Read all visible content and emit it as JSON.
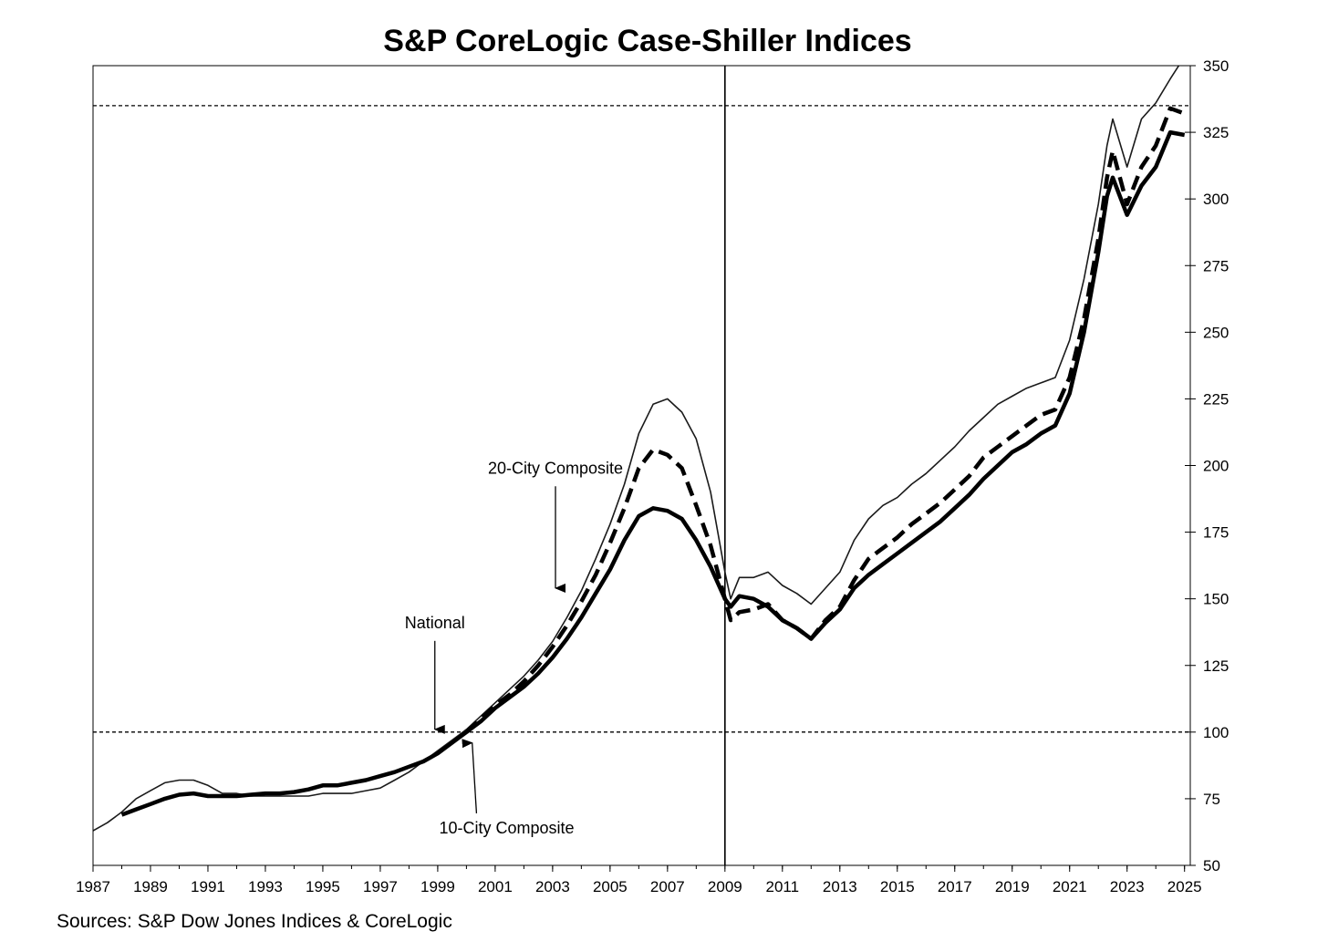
{
  "chart_data": {
    "type": "line",
    "title": "S&P CoreLogic Case-Shiller Indices",
    "source": "Sources:  S&P Dow Jones Indices & CoreLogic",
    "xlim": [
      1987,
      2025.2
    ],
    "ylim": [
      50,
      350
    ],
    "x_ticks": [
      "1987",
      "1989",
      "1991",
      "1993",
      "1995",
      "1997",
      "1999",
      "2001",
      "2003",
      "2005",
      "2007",
      "2009",
      "2011",
      "2013",
      "2015",
      "2017",
      "2019",
      "2021",
      "2023",
      "2025"
    ],
    "y_ticks": [
      "50",
      "75",
      "100",
      "125",
      "150",
      "175",
      "200",
      "225",
      "250",
      "275",
      "300",
      "325",
      "350"
    ],
    "y_axis_side": "right",
    "grid": false,
    "reference_lines": [
      {
        "axis": "y",
        "value": 100,
        "style": "dashed"
      },
      {
        "axis": "y",
        "value": 335,
        "style": "dashed"
      },
      {
        "axis": "x",
        "value": 2009,
        "style": "solid"
      }
    ],
    "annotations": [
      {
        "text": "20-City Composite",
        "label_x": 2003.1,
        "label_y": 197,
        "arrow_to_x": 2003.1,
        "arrow_to_y": 154
      },
      {
        "text": "National",
        "label_x": 1998.9,
        "label_y": 139,
        "arrow_to_x": 1998.9,
        "arrow_to_y": 101
      },
      {
        "text": "10-City Composite",
        "label_x": 2001.4,
        "label_y": 62,
        "arrow_to_x": 2000.2,
        "arrow_to_y": 96
      }
    ],
    "series": [
      {
        "id": "national",
        "style": "thin",
        "points": [
          [
            1987,
            63
          ],
          [
            1987.5,
            66
          ],
          [
            1988,
            70
          ],
          [
            1988.5,
            75
          ],
          [
            1989,
            78
          ],
          [
            1989.5,
            81
          ],
          [
            1990,
            82
          ],
          [
            1990.5,
            82
          ],
          [
            1991,
            80
          ],
          [
            1991.5,
            77
          ],
          [
            1992,
            77
          ],
          [
            1992.5,
            76
          ],
          [
            1993,
            76
          ],
          [
            1993.5,
            76
          ],
          [
            1994,
            76
          ],
          [
            1994.5,
            76
          ],
          [
            1995,
            77
          ],
          [
            1995.5,
            77
          ],
          [
            1996,
            77
          ],
          [
            1996.5,
            78
          ],
          [
            1997,
            79
          ],
          [
            1997.5,
            82
          ],
          [
            1998,
            85
          ],
          [
            1998.5,
            89
          ],
          [
            1999,
            93
          ],
          [
            1999.5,
            97
          ],
          [
            2000,
            101
          ],
          [
            2000.5,
            106
          ],
          [
            2001,
            111
          ],
          [
            2001.5,
            116
          ],
          [
            2002,
            121
          ],
          [
            2002.5,
            127
          ],
          [
            2003,
            134
          ],
          [
            2003.5,
            143
          ],
          [
            2004,
            153
          ],
          [
            2004.5,
            165
          ],
          [
            2005,
            178
          ],
          [
            2005.5,
            193
          ],
          [
            2006,
            212
          ],
          [
            2006.5,
            223
          ],
          [
            2007,
            225
          ],
          [
            2007.5,
            220
          ],
          [
            2008,
            210
          ],
          [
            2008.5,
            190
          ],
          [
            2009,
            160
          ],
          [
            2009.2,
            150
          ],
          [
            2009.5,
            158
          ],
          [
            2010,
            158
          ],
          [
            2010.5,
            160
          ],
          [
            2011,
            155
          ],
          [
            2011.5,
            152
          ],
          [
            2012,
            148
          ],
          [
            2012.5,
            154
          ],
          [
            2013,
            160
          ],
          [
            2013.5,
            172
          ],
          [
            2014,
            180
          ],
          [
            2014.5,
            185
          ],
          [
            2015,
            188
          ],
          [
            2015.5,
            193
          ],
          [
            2016,
            197
          ],
          [
            2016.5,
            202
          ],
          [
            2017,
            207
          ],
          [
            2017.5,
            213
          ],
          [
            2018,
            218
          ],
          [
            2018.5,
            223
          ],
          [
            2019,
            226
          ],
          [
            2019.5,
            229
          ],
          [
            2020,
            231
          ],
          [
            2020.5,
            233
          ],
          [
            2021,
            247
          ],
          [
            2021.5,
            270
          ],
          [
            2022,
            298
          ],
          [
            2022.3,
            320
          ],
          [
            2022.5,
            330
          ],
          [
            2023,
            312
          ],
          [
            2023.5,
            330
          ],
          [
            2024,
            336
          ],
          [
            2024.5,
            345
          ],
          [
            2024.8,
            350
          ]
        ]
      },
      {
        "id": "20-city",
        "style": "dashed",
        "points": [
          [
            2000,
            100
          ],
          [
            2000.5,
            105
          ],
          [
            2001,
            110
          ],
          [
            2001.5,
            114
          ],
          [
            2002,
            119
          ],
          [
            2002.5,
            125
          ],
          [
            2003,
            132
          ],
          [
            2003.5,
            140
          ],
          [
            2004,
            149
          ],
          [
            2004.5,
            159
          ],
          [
            2005,
            171
          ],
          [
            2005.5,
            184
          ],
          [
            2006,
            199
          ],
          [
            2006.5,
            206
          ],
          [
            2007,
            204
          ],
          [
            2007.5,
            199
          ],
          [
            2008,
            185
          ],
          [
            2008.5,
            170
          ],
          [
            2009,
            150
          ],
          [
            2009.2,
            142
          ],
          [
            2009.5,
            145
          ],
          [
            2010,
            146
          ],
          [
            2010.5,
            148
          ],
          [
            2011,
            142
          ],
          [
            2011.5,
            139
          ],
          [
            2012,
            135
          ],
          [
            2012.5,
            142
          ],
          [
            2013,
            147
          ],
          [
            2013.5,
            157
          ],
          [
            2014,
            165
          ],
          [
            2014.5,
            169
          ],
          [
            2015,
            173
          ],
          [
            2015.5,
            178
          ],
          [
            2016,
            182
          ],
          [
            2016.5,
            186
          ],
          [
            2017,
            191
          ],
          [
            2017.5,
            196
          ],
          [
            2018,
            203
          ],
          [
            2018.5,
            207
          ],
          [
            2019,
            211
          ],
          [
            2019.5,
            215
          ],
          [
            2020,
            219
          ],
          [
            2020.5,
            221
          ],
          [
            2021,
            233
          ],
          [
            2021.5,
            255
          ],
          [
            2022,
            285
          ],
          [
            2022.3,
            308
          ],
          [
            2022.5,
            318
          ],
          [
            2023,
            298
          ],
          [
            2023.5,
            312
          ],
          [
            2024,
            320
          ],
          [
            2024.5,
            334
          ],
          [
            2025,
            332
          ]
        ]
      },
      {
        "id": "10-city",
        "style": "thick",
        "points": [
          [
            1988,
            69
          ],
          [
            1988.5,
            71
          ],
          [
            1989,
            73
          ],
          [
            1989.5,
            75
          ],
          [
            1990,
            76.5
          ],
          [
            1990.5,
            77
          ],
          [
            1991,
            76
          ],
          [
            1991.5,
            76
          ],
          [
            1992,
            76
          ],
          [
            1992.5,
            76.5
          ],
          [
            1993,
            77
          ],
          [
            1993.5,
            77
          ],
          [
            1994,
            77.5
          ],
          [
            1994.5,
            78.5
          ],
          [
            1995,
            80
          ],
          [
            1995.5,
            80
          ],
          [
            1996,
            81
          ],
          [
            1996.5,
            82
          ],
          [
            1997,
            83.5
          ],
          [
            1997.5,
            85
          ],
          [
            1998,
            87
          ],
          [
            1998.5,
            89
          ],
          [
            1999,
            92
          ],
          [
            1999.5,
            96
          ],
          [
            2000,
            100
          ],
          [
            2000.5,
            104
          ],
          [
            2001,
            109
          ],
          [
            2001.5,
            113
          ],
          [
            2002,
            117
          ],
          [
            2002.5,
            122
          ],
          [
            2003,
            128
          ],
          [
            2003.5,
            135
          ],
          [
            2004,
            143
          ],
          [
            2004.5,
            152
          ],
          [
            2005,
            161
          ],
          [
            2005.5,
            172
          ],
          [
            2006,
            181
          ],
          [
            2006.5,
            184
          ],
          [
            2007,
            183
          ],
          [
            2007.5,
            180
          ],
          [
            2008,
            172
          ],
          [
            2008.5,
            162
          ],
          [
            2009,
            150
          ],
          [
            2009.2,
            147
          ],
          [
            2009.5,
            151
          ],
          [
            2010,
            150
          ],
          [
            2010.5,
            147
          ],
          [
            2011,
            142
          ],
          [
            2011.5,
            139
          ],
          [
            2012,
            135
          ],
          [
            2012.5,
            141
          ],
          [
            2013,
            146
          ],
          [
            2013.5,
            154
          ],
          [
            2014,
            159
          ],
          [
            2014.5,
            163
          ],
          [
            2015,
            167
          ],
          [
            2015.5,
            171
          ],
          [
            2016,
            175
          ],
          [
            2016.5,
            179
          ],
          [
            2017,
            184
          ],
          [
            2017.5,
            189
          ],
          [
            2018,
            195
          ],
          [
            2018.5,
            200
          ],
          [
            2019,
            205
          ],
          [
            2019.5,
            208
          ],
          [
            2020,
            212
          ],
          [
            2020.5,
            215
          ],
          [
            2021,
            227
          ],
          [
            2021.5,
            250
          ],
          [
            2022,
            280
          ],
          [
            2022.3,
            301
          ],
          [
            2022.5,
            308
          ],
          [
            2023,
            294
          ],
          [
            2023.5,
            305
          ],
          [
            2024,
            312
          ],
          [
            2024.5,
            325
          ],
          [
            2025,
            324
          ]
        ]
      }
    ]
  }
}
